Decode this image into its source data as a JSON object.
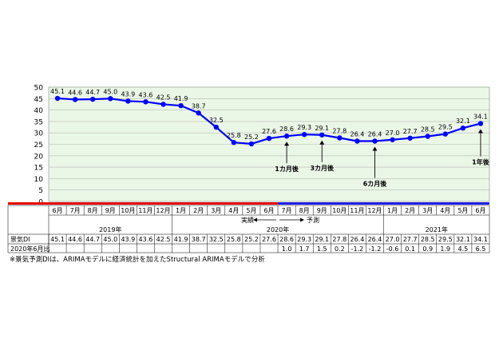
{
  "chart_data": {
    "type": "line",
    "title": "",
    "xlabel": "",
    "ylabel": "",
    "ylim": [
      0,
      50
    ],
    "yticks": [
      0,
      5,
      10,
      15,
      20,
      25,
      30,
      35,
      40,
      45,
      50
    ],
    "grid": true,
    "categories": [
      "6月",
      "7月",
      "8月",
      "9月",
      "10月",
      "11月",
      "12月",
      "1月",
      "2月",
      "3月",
      "4月",
      "5月",
      "6月",
      "7月",
      "8月",
      "9月",
      "10月",
      "11月",
      "12月",
      "1月",
      "2月",
      "3月",
      "4月",
      "5月",
      "6月"
    ],
    "year_groups": [
      {
        "label": "2019年",
        "start": 0,
        "end": 6
      },
      {
        "label": "2020年",
        "start": 7,
        "end": 18
      },
      {
        "label": "2021年",
        "start": 19,
        "end": 24
      }
    ],
    "series": [
      {
        "name": "景気DI",
        "color": "#0000ff",
        "values": [
          45.1,
          44.6,
          44.7,
          45.0,
          43.9,
          43.6,
          42.5,
          41.9,
          38.7,
          32.5,
          25.8,
          25.2,
          27.6,
          28.6,
          29.3,
          29.1,
          27.8,
          26.4,
          26.4,
          27.0,
          27.7,
          28.5,
          29.5,
          32.1,
          34.1
        ],
        "display": [
          "45.1",
          "44.6",
          "44.7",
          "45.0",
          "43.9",
          "43.6",
          "42.5",
          "41.9",
          "38.7",
          "32.5",
          "25.8",
          "25.2",
          "27.6",
          "28.6",
          "29.3",
          "29.1",
          "27.8",
          "26.4",
          "26.4",
          "27.0",
          "27.7",
          "28.5",
          "29.5",
          "32.1",
          "34.1"
        ]
      }
    ],
    "actual_label": "実績",
    "forecast_label": "予測",
    "forecast_start_index": 13,
    "annotations": [
      {
        "label": "1カ月後",
        "index": 13
      },
      {
        "label": "3カ月後",
        "index": 15
      },
      {
        "label": "6カ月後",
        "index": 18
      },
      {
        "label": "1年後",
        "index": 24
      }
    ],
    "table": {
      "row1_label": "景気DI",
      "row1": [
        "45.1",
        "44.6",
        "44.7",
        "45.0",
        "43.9",
        "43.6",
        "42.5",
        "41.9",
        "38.7",
        "32.5",
        "25.8",
        "25.2",
        "27.6",
        "28.6",
        "29.3",
        "29.1",
        "27.8",
        "26.4",
        "26.4",
        "27.0",
        "27.7",
        "28.5",
        "29.5",
        "32.1",
        "34.1"
      ],
      "row2_label": "2020年6月比",
      "row2": [
        "",
        "",
        "",
        "",
        "",
        "",
        "",
        "",
        "",
        "",
        "",
        "",
        "",
        "1.0",
        "1.7",
        "1.5",
        "0.2",
        "-1.2",
        "-1.2",
        "-0.6",
        "0.1",
        "0.9",
        "1.9",
        "4.5",
        "6.5"
      ]
    },
    "colors": {
      "line": "#0000ff",
      "plot_bg": "#eaf7e6",
      "actual_bar": "#e60000",
      "forecast_bar": "#1e1ee6"
    }
  },
  "footnote": "※景気予測DIは、ARIMAモデルに経済統計を加えたStructural ARIMAモデルで分析"
}
